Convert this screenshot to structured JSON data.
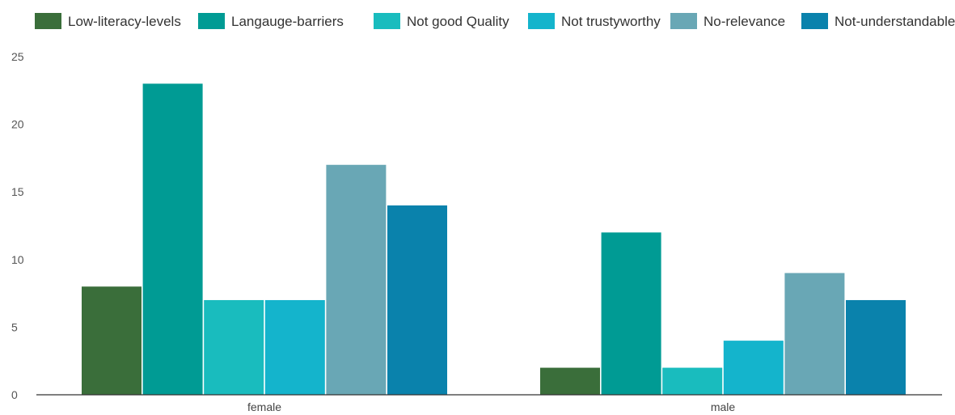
{
  "chart_data": {
    "type": "bar",
    "title": "",
    "xlabel": "",
    "ylabel": "",
    "categories": [
      "female",
      "male"
    ],
    "series": [
      {
        "name": "Low-literacy-levels",
        "color": "#3a6e3a",
        "values": [
          8,
          2
        ]
      },
      {
        "name": "Langauge-barriers",
        "color": "#009b94",
        "values": [
          23,
          12
        ]
      },
      {
        "name": "Not good Quality",
        "color": "#19bcbe",
        "values": [
          7,
          2
        ]
      },
      {
        "name": "Not trustyworthy",
        "color": "#14b4cc",
        "values": [
          7,
          4
        ]
      },
      {
        "name": "No-relevance",
        "color": "#69a7b5",
        "values": [
          17,
          9
        ]
      },
      {
        "name": "Not-understandable",
        "color": "#0a82ac",
        "values": [
          14,
          7
        ]
      }
    ],
    "ylim": [
      0,
      25
    ],
    "yticks": [
      0,
      5,
      10,
      15,
      20,
      25
    ],
    "grid": false,
    "legend_position": "top"
  }
}
